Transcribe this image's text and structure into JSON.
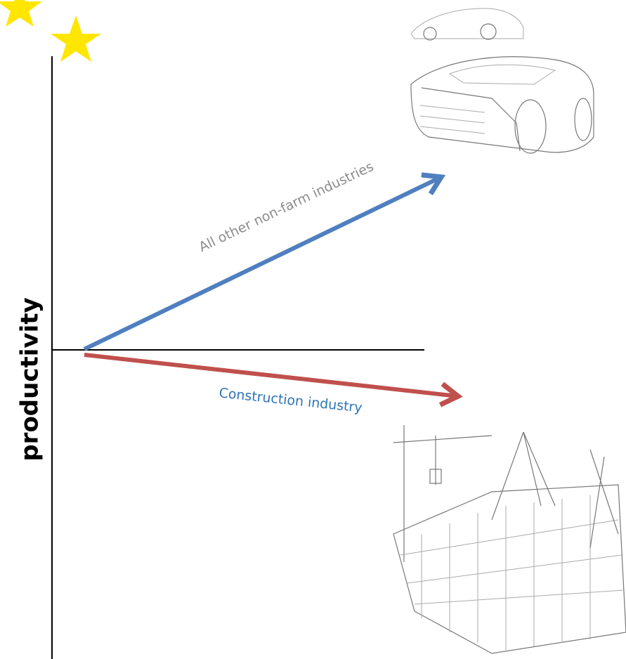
{
  "axis_label": "productivity",
  "arrows": [
    {
      "label": "All other non-farm industries"
    },
    {
      "label": "Construction industry"
    }
  ]
}
